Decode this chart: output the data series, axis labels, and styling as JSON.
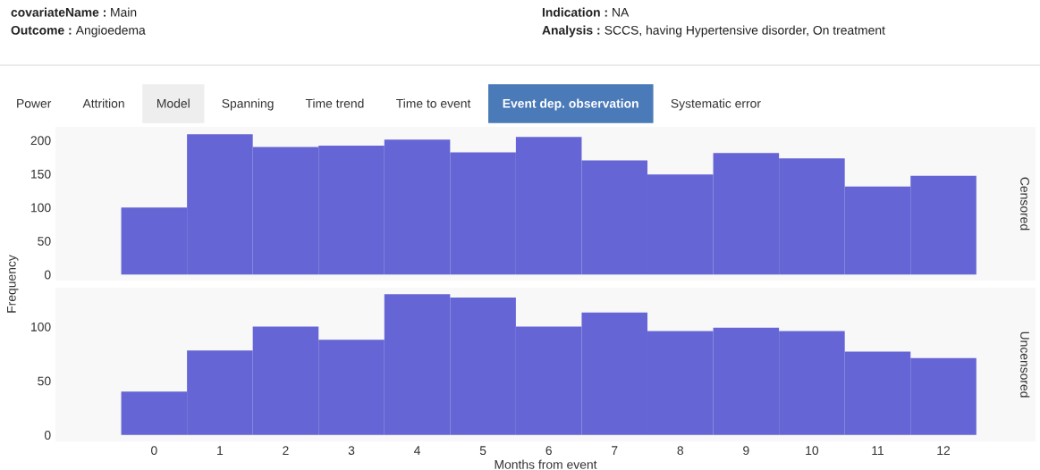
{
  "chart_data": [
    {
      "type": "other",
      "annotations": [
        "covariateName : Main",
        "Outcome : Angioedema",
        "Indication : NA",
        "Analysis : SCCS, having Hypertensive disorder, On treatment",
        "Power",
        "Attrition",
        "Model",
        "Spanning",
        "Time trend",
        "Time to event",
        "Event dep. observation",
        "Systematic error"
      ]
    },
    {
      "type": "bar",
      "annotations": [
        "Censored"
      ],
      "ylabel": "Frequency",
      "categories": [
        "0",
        "1",
        "2",
        "3",
        "4",
        "5",
        "6",
        "7",
        "8",
        "9",
        "10",
        "11",
        "12"
      ],
      "values": [
        100,
        209,
        190,
        192,
        201,
        182,
        205,
        170,
        149,
        181,
        173,
        131,
        147
      ],
      "color": "#6565d5",
      "ylim": [
        -9,
        220
      ],
      "yticks": [
        0,
        50,
        100,
        150,
        200
      ],
      "tick_labels": "y",
      "grid": false
    },
    {
      "type": "bar",
      "annotations": [
        "Uncensored"
      ],
      "xlabel": "Months from event",
      "categories": [
        "0",
        "1",
        "2",
        "3",
        "4",
        "5",
        "6",
        "7",
        "8",
        "9",
        "10",
        "11",
        "12"
      ],
      "values": [
        40,
        78,
        100,
        88,
        130,
        127,
        100,
        113,
        96,
        99,
        96,
        77,
        71
      ],
      "color": "#6565d5",
      "ylim": [
        -6,
        136
      ],
      "yticks": [
        0,
        50,
        100
      ],
      "grid": false
    }
  ]
}
